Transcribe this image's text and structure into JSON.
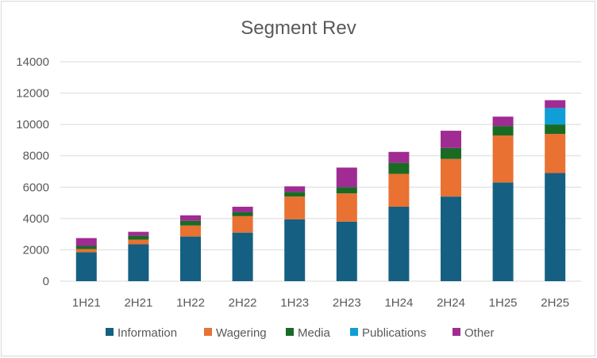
{
  "chart_data": {
    "type": "bar",
    "stacked": true,
    "title": "Segment Rev",
    "xlabel": "",
    "ylabel": "",
    "ylim": [
      0,
      14000
    ],
    "yticks": [
      0,
      2000,
      4000,
      6000,
      8000,
      10000,
      12000,
      14000
    ],
    "grid": true,
    "legend_position": "bottom",
    "categories": [
      "1H21",
      "2H21",
      "1H22",
      "2H22",
      "1H23",
      "2H23",
      "1H24",
      "2H24",
      "1H25",
      "2H25"
    ],
    "series": [
      {
        "name": "Information",
        "color": "#156082",
        "values": [
          1850,
          2350,
          2850,
          3100,
          3950,
          3800,
          4750,
          5400,
          6300,
          6900
        ]
      },
      {
        "name": "Wagering",
        "color": "#e97132",
        "values": [
          200,
          300,
          700,
          1050,
          1450,
          1800,
          2100,
          2400,
          3000,
          2500
        ]
      },
      {
        "name": "Media",
        "color": "#196b24",
        "values": [
          200,
          250,
          300,
          250,
          300,
          400,
          700,
          700,
          600,
          600
        ]
      },
      {
        "name": "Publications",
        "color": "#0f9ed5",
        "values": [
          0,
          0,
          0,
          0,
          0,
          0,
          0,
          0,
          0,
          1050
        ]
      },
      {
        "name": "Other",
        "color": "#a02b93",
        "values": [
          500,
          250,
          350,
          350,
          350,
          1250,
          700,
          1100,
          600,
          500
        ]
      }
    ]
  }
}
